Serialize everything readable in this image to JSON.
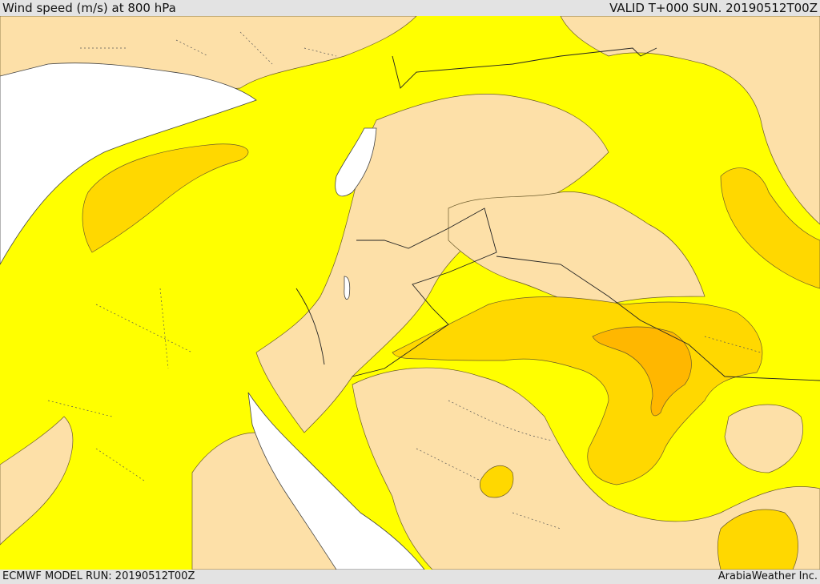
{
  "header": {
    "title": "Wind speed (m/s) at 800 hPa",
    "valid": "VALID T+000 SUN. 20190512T00Z"
  },
  "footer": {
    "model_run": "ECMWF MODEL RUN: 20190512T00Z",
    "credit": "ArabiaWeather Inc."
  },
  "colors": {
    "band_light": "#fde0a8",
    "band_mid_yellow": "#ffff00",
    "band_gold": "#ffd800",
    "band_orange": "#ffb700",
    "sea": "#ffffff"
  }
}
